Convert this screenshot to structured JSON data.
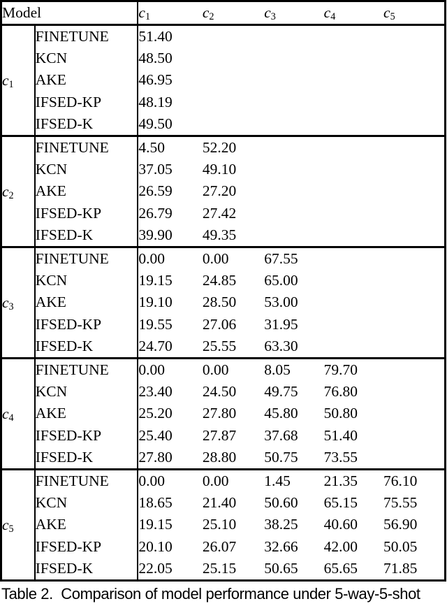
{
  "colors": {
    "text": "#000000",
    "background": "#ffffff",
    "border": "#000000"
  },
  "table": {
    "model_header": "Model",
    "columns": [
      {
        "base": "c",
        "sub": "1"
      },
      {
        "base": "c",
        "sub": "2"
      },
      {
        "base": "c",
        "sub": "3"
      },
      {
        "base": "c",
        "sub": "4"
      },
      {
        "base": "c",
        "sub": "5"
      }
    ],
    "groups": [
      {
        "label": {
          "base": "c",
          "sub": "1"
        },
        "rows": [
          {
            "model": "FINETUNE",
            "values": [
              {
                "v": "51.40",
                "bold": true
              }
            ]
          },
          {
            "model": "KCN",
            "values": [
              {
                "v": "48.50"
              }
            ]
          },
          {
            "model": "AKE",
            "values": [
              {
                "v": "46.95"
              }
            ]
          },
          {
            "model": "IFSED-KP",
            "values": [
              {
                "v": "48.19"
              }
            ]
          },
          {
            "model": "IFSED-K",
            "values": [
              {
                "v": "49.50"
              }
            ]
          }
        ]
      },
      {
        "label": {
          "base": "c",
          "sub": "2"
        },
        "rows": [
          {
            "model": "FINETUNE",
            "values": [
              {
                "v": "4.50"
              },
              {
                "v": "52.20",
                "bold": true
              }
            ]
          },
          {
            "model": "KCN",
            "values": [
              {
                "v": "37.05"
              },
              {
                "v": "49.10"
              }
            ]
          },
          {
            "model": "AKE",
            "values": [
              {
                "v": "26.59"
              },
              {
                "v": "27.20"
              }
            ]
          },
          {
            "model": "IFSED-KP",
            "values": [
              {
                "v": "26.79"
              },
              {
                "v": "27.42"
              }
            ]
          },
          {
            "model": "IFSED-K",
            "values": [
              {
                "v": "39.90",
                "bold": true
              },
              {
                "v": "49.35"
              }
            ]
          }
        ]
      },
      {
        "label": {
          "base": "c",
          "sub": "3"
        },
        "rows": [
          {
            "model": "FINETUNE",
            "values": [
              {
                "v": "0.00"
              },
              {
                "v": "0.00"
              },
              {
                "v": "67.55",
                "bold": true
              }
            ]
          },
          {
            "model": "KCN",
            "values": [
              {
                "v": "19.15"
              },
              {
                "v": "24.85"
              },
              {
                "v": "65.00"
              }
            ]
          },
          {
            "model": "AKE",
            "values": [
              {
                "v": "19.10"
              },
              {
                "v": "28.50",
                "bold": true
              },
              {
                "v": "53.00"
              }
            ]
          },
          {
            "model": "IFSED-KP",
            "values": [
              {
                "v": "19.55"
              },
              {
                "v": "27.06"
              },
              {
                "v": "31.95"
              }
            ]
          },
          {
            "model": "IFSED-K",
            "values": [
              {
                "v": "24.70",
                "bold": true
              },
              {
                "v": "25.55"
              },
              {
                "v": "63.30"
              }
            ]
          }
        ]
      },
      {
        "label": {
          "base": "c",
          "sub": "4"
        },
        "rows": [
          {
            "model": "FINETUNE",
            "values": [
              {
                "v": "0.00"
              },
              {
                "v": "0.00"
              },
              {
                "v": "8.05"
              },
              {
                "v": "79.70",
                "bold": true
              }
            ]
          },
          {
            "model": "KCN",
            "values": [
              {
                "v": "23.40"
              },
              {
                "v": "24.50"
              },
              {
                "v": "49.75"
              },
              {
                "v": "76.80"
              }
            ]
          },
          {
            "model": "AKE",
            "values": [
              {
                "v": "25.20"
              },
              {
                "v": "27.80"
              },
              {
                "v": "45.80"
              },
              {
                "v": "50.80"
              }
            ]
          },
          {
            "model": "IFSED-KP",
            "values": [
              {
                "v": "25.40"
              },
              {
                "v": "27.87"
              },
              {
                "v": "37.68"
              },
              {
                "v": "51.40"
              }
            ]
          },
          {
            "model": "IFSED-K",
            "values": [
              {
                "v": "27.80",
                "bold": true
              },
              {
                "v": "28.80",
                "bold": true
              },
              {
                "v": "50.75",
                "bold": true
              },
              {
                "v": "73.55"
              }
            ]
          }
        ]
      },
      {
        "label": {
          "base": "c",
          "sub": "5"
        },
        "rows": [
          {
            "model": "FINETUNE",
            "values": [
              {
                "v": "0.00"
              },
              {
                "v": "0.00"
              },
              {
                "v": "1.45"
              },
              {
                "v": "21.35"
              },
              {
                "v": "76.10",
                "bold": true
              }
            ]
          },
          {
            "model": "KCN",
            "values": [
              {
                "v": "18.65"
              },
              {
                "v": "21.40"
              },
              {
                "v": "50.60"
              },
              {
                "v": "65.15"
              },
              {
                "v": "75.55"
              }
            ]
          },
          {
            "model": "AKE",
            "values": [
              {
                "v": "19.15"
              },
              {
                "v": "25.10"
              },
              {
                "v": "38.25"
              },
              {
                "v": "40.60"
              },
              {
                "v": "56.90"
              }
            ]
          },
          {
            "model": "IFSED-KP",
            "values": [
              {
                "v": "20.10"
              },
              {
                "v": "26.07",
                "bold": true
              },
              {
                "v": "32.66"
              },
              {
                "v": "42.00"
              },
              {
                "v": "50.05"
              }
            ]
          },
          {
            "model": "IFSED-K",
            "values": [
              {
                "v": "22.05",
                "bold": true
              },
              {
                "v": "25.15"
              },
              {
                "v": "50.65",
                "bold": true
              },
              {
                "v": "65.65",
                "bold": true
              },
              {
                "v": "71.85"
              }
            ]
          }
        ]
      }
    ]
  },
  "caption": {
    "text": "Table 2.  Comparison of model performance under 5-way-5-shot"
  }
}
